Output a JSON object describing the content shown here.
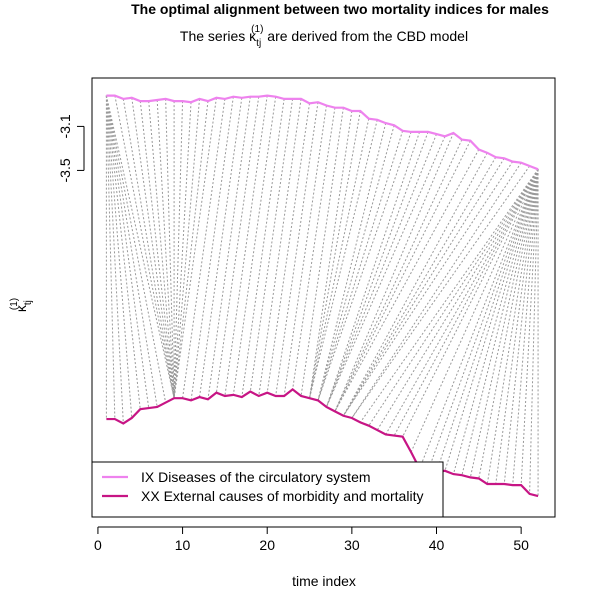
{
  "chart_data": {
    "type": "alignment",
    "title": "The optimal alignment between two mortality indices for males",
    "subtitle": {
      "before": "The series",
      "symbol": "κ",
      "sub": "tj",
      "sup": "(1)",
      "after": "are derived from the CBD model"
    },
    "xlabel": "time index",
    "ylabel": {
      "symbol": "κ",
      "sub": "tj",
      "sup": "(1)"
    },
    "xlim": [
      -0.7,
      54.0
    ],
    "ylim": [
      -6.65,
      -2.66
    ],
    "xticks": [
      0,
      10,
      20,
      30,
      40,
      50
    ],
    "yticks": [
      -3.1,
      -3.5
    ],
    "legend": "bottom-left",
    "x": [
      1,
      2,
      3,
      4,
      5,
      6,
      7,
      8,
      9,
      10,
      11,
      12,
      13,
      14,
      15,
      16,
      17,
      18,
      19,
      20,
      21,
      22,
      23,
      24,
      25,
      26,
      27,
      28,
      29,
      30,
      31,
      32,
      33,
      34,
      35,
      36,
      37,
      38,
      39,
      40,
      41,
      42,
      43,
      44,
      45,
      46,
      47,
      48,
      49,
      50,
      51,
      52
    ],
    "series": [
      {
        "name": "IX Diseases of the circulatory system",
        "color": "#ee82ee",
        "values": [
          -2.82,
          -2.82,
          -2.85,
          -2.84,
          -2.87,
          -2.87,
          -2.86,
          -2.85,
          -2.87,
          -2.87,
          -2.88,
          -2.85,
          -2.87,
          -2.84,
          -2.85,
          -2.83,
          -2.84,
          -2.83,
          -2.83,
          -2.82,
          -2.83,
          -2.85,
          -2.85,
          -2.85,
          -2.89,
          -2.88,
          -2.91,
          -2.93,
          -2.93,
          -2.96,
          -2.96,
          -3.03,
          -3.04,
          -3.07,
          -3.09,
          -3.14,
          -3.15,
          -3.15,
          -3.15,
          -3.17,
          -3.19,
          -3.16,
          -3.22,
          -3.23,
          -3.31,
          -3.34,
          -3.38,
          -3.39,
          -3.42,
          -3.43,
          -3.46,
          -3.49
        ]
      },
      {
        "name": "XX External causes of morbidity and mortality",
        "color": "#c71585",
        "values": [
          -5.76,
          -5.76,
          -5.8,
          -5.75,
          -5.67,
          -5.66,
          -5.65,
          -5.61,
          -5.57,
          -5.57,
          -5.59,
          -5.56,
          -5.58,
          -5.52,
          -5.55,
          -5.54,
          -5.56,
          -5.51,
          -5.55,
          -5.52,
          -5.55,
          -5.55,
          -5.49,
          -5.55,
          -5.57,
          -5.59,
          -5.65,
          -5.69,
          -5.73,
          -5.75,
          -5.79,
          -5.82,
          -5.86,
          -5.9,
          -5.91,
          -5.92,
          -6.06,
          -6.21,
          -6.23,
          -6.24,
          -6.23,
          -6.26,
          -6.27,
          -6.29,
          -6.3,
          -6.35,
          -6.35,
          -6.35,
          -6.36,
          -6.36,
          -6.44,
          -6.46
        ]
      }
    ],
    "alignment": [
      [
        1,
        1
      ],
      [
        1,
        2
      ],
      [
        1,
        3
      ],
      [
        1,
        4
      ],
      [
        1,
        5
      ],
      [
        1,
        6
      ],
      [
        1,
        7
      ],
      [
        1,
        8
      ],
      [
        1,
        9
      ],
      [
        2,
        9
      ],
      [
        3,
        9
      ],
      [
        4,
        9
      ],
      [
        5,
        9
      ],
      [
        6,
        9
      ],
      [
        7,
        9
      ],
      [
        8,
        9
      ],
      [
        9,
        9
      ],
      [
        10,
        9
      ],
      [
        11,
        9
      ],
      [
        12,
        9
      ],
      [
        13,
        9
      ],
      [
        14,
        9
      ],
      [
        15,
        10
      ],
      [
        16,
        11
      ],
      [
        17,
        12
      ],
      [
        18,
        13
      ],
      [
        19,
        14
      ],
      [
        20,
        15
      ],
      [
        21,
        16
      ],
      [
        22,
        17
      ],
      [
        23,
        18
      ],
      [
        24,
        19
      ],
      [
        25,
        20
      ],
      [
        26,
        21
      ],
      [
        27,
        22
      ],
      [
        28,
        23
      ],
      [
        29,
        24
      ],
      [
        30,
        25
      ],
      [
        31,
        25
      ],
      [
        32,
        25
      ],
      [
        33,
        25
      ],
      [
        34,
        26
      ],
      [
        35,
        26
      ],
      [
        36,
        26
      ],
      [
        37,
        26
      ],
      [
        38,
        27
      ],
      [
        39,
        27
      ],
      [
        40,
        27
      ],
      [
        41,
        27
      ],
      [
        42,
        28
      ],
      [
        43,
        28
      ],
      [
        44,
        28
      ],
      [
        45,
        28
      ],
      [
        46,
        29
      ],
      [
        47,
        29
      ],
      [
        48,
        29
      ],
      [
        49,
        29
      ],
      [
        50,
        30
      ],
      [
        51,
        30
      ],
      [
        52,
        31
      ],
      [
        52,
        32
      ],
      [
        52,
        33
      ],
      [
        52,
        34
      ],
      [
        52,
        35
      ],
      [
        52,
        36
      ],
      [
        52,
        37
      ],
      [
        52,
        38
      ],
      [
        52,
        39
      ],
      [
        52,
        40
      ],
      [
        52,
        41
      ],
      [
        52,
        42
      ],
      [
        52,
        43
      ],
      [
        52,
        44
      ],
      [
        52,
        45
      ],
      [
        52,
        46
      ],
      [
        52,
        47
      ],
      [
        52,
        48
      ],
      [
        52,
        49
      ],
      [
        52,
        50
      ],
      [
        52,
        51
      ],
      [
        52,
        52
      ]
    ]
  }
}
